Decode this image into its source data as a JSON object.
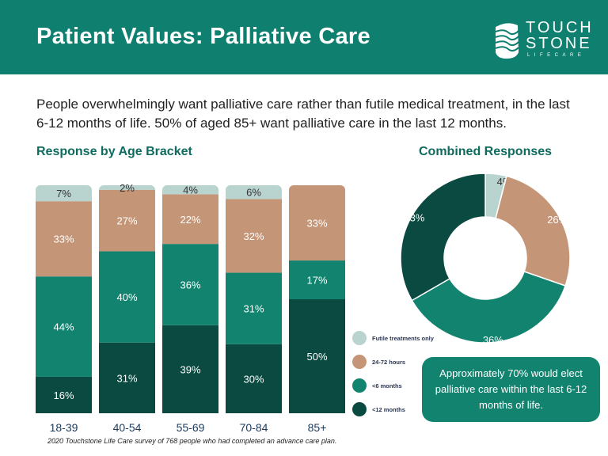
{
  "header": {
    "title": "Patient Values: Palliative Care",
    "logo": {
      "line1": "TOUCH",
      "line2": "STONE",
      "line3": "LIFECARE"
    }
  },
  "intro": "People overwhelmingly want palliative care rather than futile medical treatment, in the last 6-12 months of life.  50% of aged 85+ want palliative care in the last 12 months.",
  "callout": "Approximately 70% would elect palliative care within the last 6-12 months of life.",
  "source": "2020 Touchstone Life Care survey of 768 people who had completed an advance care plan.",
  "colors": {
    "header": "#0f7f6f",
    "futile": "#b9d3cf",
    "h2472": "#c49677",
    "m6": "#12836f",
    "m12": "#0a4a40"
  },
  "legend": [
    {
      "label": "Futile treatments only",
      "color": "#b9d3cf"
    },
    {
      "label": "24-72 hours",
      "color": "#c49677"
    },
    {
      "label": "<6 months",
      "color": "#12836f"
    },
    {
      "label": "<12 months",
      "color": "#0a4a40"
    }
  ],
  "chart_data": [
    {
      "type": "bar",
      "stacked": true,
      "title": "Response by Age Bracket",
      "categories": [
        "18-39",
        "40-54",
        "55-69",
        "70-84",
        "85+"
      ],
      "series": [
        {
          "name": "<12 months",
          "values": [
            16,
            31,
            39,
            30,
            50
          ]
        },
        {
          "name": "<6 months",
          "values": [
            44,
            40,
            36,
            31,
            17
          ]
        },
        {
          "name": "24-72 hours",
          "values": [
            33,
            27,
            22,
            32,
            33
          ]
        },
        {
          "name": "Futile treatments only",
          "values": [
            7,
            2,
            4,
            6,
            0
          ]
        }
      ]
    },
    {
      "type": "pie",
      "donut": true,
      "title": "Combined Responses",
      "labels": [
        "Futile treatments only",
        "24-72 hours",
        "<6 months",
        "<12 months"
      ],
      "values": [
        4,
        26,
        36,
        33
      ]
    }
  ]
}
